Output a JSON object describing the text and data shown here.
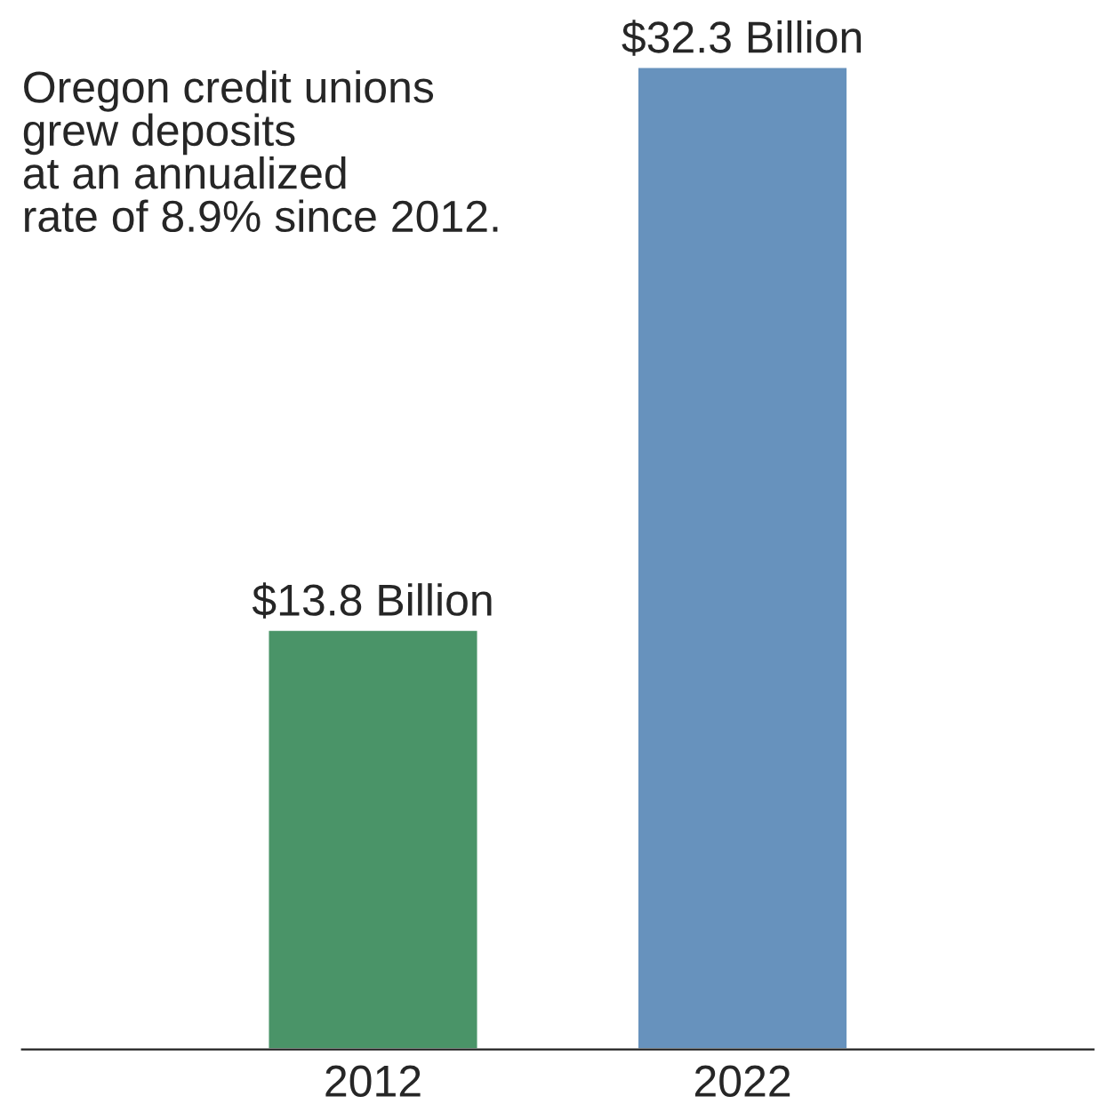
{
  "chart_data": {
    "type": "bar",
    "categories": [
      "2012",
      "2022"
    ],
    "values": [
      13.8,
      32.3
    ],
    "colors": [
      "#4a9468",
      "#6792bd"
    ],
    "value_labels": [
      "$13.8 Billion",
      "$32.3 Billion"
    ],
    "annotations": [
      "Oregon credit unions\ngrew deposits\nat an annualized\nrate of 8.9% since 2012."
    ],
    "grid": false,
    "legend": false
  }
}
